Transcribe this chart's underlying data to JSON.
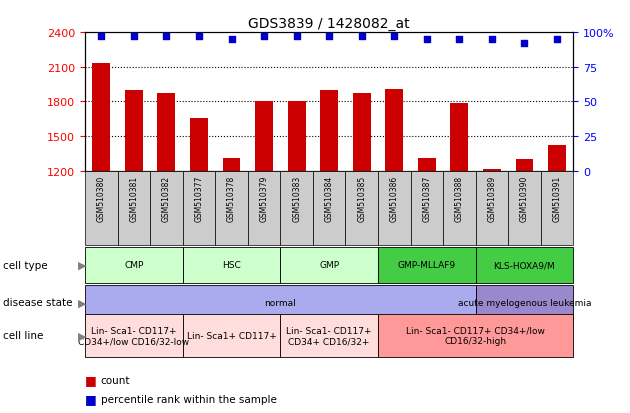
{
  "title": "GDS3839 / 1428082_at",
  "samples": [
    "GSM510380",
    "GSM510381",
    "GSM510382",
    "GSM510377",
    "GSM510378",
    "GSM510379",
    "GSM510383",
    "GSM510384",
    "GSM510385",
    "GSM510386",
    "GSM510387",
    "GSM510388",
    "GSM510389",
    "GSM510390",
    "GSM510391"
  ],
  "counts": [
    2130,
    1900,
    1870,
    1660,
    1310,
    1800,
    1800,
    1895,
    1875,
    1910,
    1310,
    1790,
    1215,
    1300,
    1420
  ],
  "percentiles": [
    97,
    97,
    97,
    97,
    95,
    97,
    97,
    97,
    97,
    97,
    95,
    95,
    95,
    92,
    95
  ],
  "ylim_left": [
    1200,
    2400
  ],
  "ylim_right": [
    0,
    100
  ],
  "yticks_left": [
    1200,
    1500,
    1800,
    2100,
    2400
  ],
  "yticks_right": [
    0,
    25,
    50,
    75,
    100
  ],
  "bar_color": "#cc0000",
  "dot_color": "#0000cc",
  "cell_type_groups": [
    {
      "label": "CMP",
      "start": 0,
      "end": 2,
      "color": "#ccffcc"
    },
    {
      "label": "HSC",
      "start": 3,
      "end": 5,
      "color": "#ccffcc"
    },
    {
      "label": "GMP",
      "start": 6,
      "end": 8,
      "color": "#ccffcc"
    },
    {
      "label": "GMP-MLLAF9",
      "start": 9,
      "end": 11,
      "color": "#44cc44"
    },
    {
      "label": "KLS-HOXA9/M",
      "start": 12,
      "end": 14,
      "color": "#44cc44"
    }
  ],
  "disease_groups": [
    {
      "label": "normal",
      "start": 0,
      "end": 11,
      "color": "#aaaaee"
    },
    {
      "label": "acute myelogenous leukemia",
      "start": 12,
      "end": 14,
      "color": "#9988cc"
    }
  ],
  "cell_line_groups": [
    {
      "label": "Lin- Sca1- CD117+\nCD34+/low CD16/32-low",
      "start": 0,
      "end": 2,
      "color": "#ffdddd"
    },
    {
      "label": "Lin- Sca1+ CD117+",
      "start": 3,
      "end": 5,
      "color": "#ffdddd"
    },
    {
      "label": "Lin- Sca1- CD117+\nCD34+ CD16/32+",
      "start": 6,
      "end": 8,
      "color": "#ffdddd"
    },
    {
      "label": "Lin- Sca1- CD117+ CD34+/low\nCD16/32-high",
      "start": 9,
      "end": 14,
      "color": "#ff9999"
    }
  ],
  "row_labels": [
    "cell type",
    "disease state",
    "cell line"
  ],
  "legend_items": [
    {
      "color": "#cc0000",
      "label": "count"
    },
    {
      "color": "#0000cc",
      "label": "percentile rank within the sample"
    }
  ],
  "tick_bg_color": "#cccccc"
}
